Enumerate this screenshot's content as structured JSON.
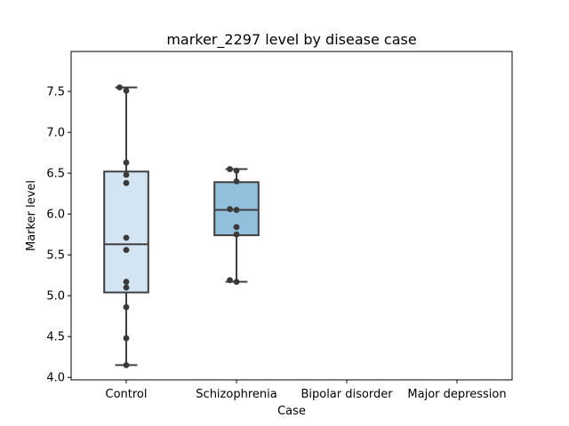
{
  "chart_data": {
    "type": "box",
    "title": "marker_2297 level by disease case",
    "xlabel": "Case",
    "ylabel": "Marker level",
    "ylim": [
      3.97,
      7.99
    ],
    "yticks": [
      4.0,
      4.5,
      5.0,
      5.5,
      6.0,
      6.5,
      7.0,
      7.5
    ],
    "ytick_labels": [
      "4.0",
      "4.5",
      "5.0",
      "5.5",
      "6.0",
      "6.5",
      "7.0",
      "7.5"
    ],
    "categories": [
      "Control",
      "Schizophrenia",
      "Bipolar disorder",
      "Major depression"
    ],
    "boxes": [
      {
        "category": "Control",
        "color": "#d3e4f3",
        "whisker_low": 4.15,
        "q1": 5.04,
        "median": 5.63,
        "q3": 6.52,
        "whisker_high": 7.55
      },
      {
        "category": "Schizophrenia",
        "color": "#92bfdb",
        "whisker_low": 5.17,
        "q1": 5.74,
        "median": 6.05,
        "q3": 6.39,
        "whisker_high": 6.55
      },
      null,
      null
    ],
    "points": [
      {
        "category": "Control",
        "y": 7.55,
        "jitter": -0.06
      },
      {
        "category": "Control",
        "y": 7.51,
        "jitter": 0.0
      },
      {
        "category": "Control",
        "y": 6.63,
        "jitter": 0.0
      },
      {
        "category": "Control",
        "y": 6.48,
        "jitter": 0.0
      },
      {
        "category": "Control",
        "y": 6.38,
        "jitter": 0.0
      },
      {
        "category": "Control",
        "y": 5.71,
        "jitter": 0.0
      },
      {
        "category": "Control",
        "y": 5.56,
        "jitter": 0.0
      },
      {
        "category": "Control",
        "y": 5.17,
        "jitter": 0.0
      },
      {
        "category": "Control",
        "y": 5.1,
        "jitter": 0.0
      },
      {
        "category": "Control",
        "y": 4.86,
        "jitter": 0.0
      },
      {
        "category": "Control",
        "y": 4.48,
        "jitter": 0.0
      },
      {
        "category": "Control",
        "y": 4.15,
        "jitter": 0.0
      },
      {
        "category": "Schizophrenia",
        "y": 6.55,
        "jitter": -0.06
      },
      {
        "category": "Schizophrenia",
        "y": 6.53,
        "jitter": 0.0
      },
      {
        "category": "Schizophrenia",
        "y": 6.4,
        "jitter": 0.0
      },
      {
        "category": "Schizophrenia",
        "y": 6.06,
        "jitter": -0.06
      },
      {
        "category": "Schizophrenia",
        "y": 6.05,
        "jitter": 0.0
      },
      {
        "category": "Schizophrenia",
        "y": 5.84,
        "jitter": 0.0
      },
      {
        "category": "Schizophrenia",
        "y": 5.75,
        "jitter": 0.0
      },
      {
        "category": "Schizophrenia",
        "y": 5.19,
        "jitter": -0.06
      },
      {
        "category": "Schizophrenia",
        "y": 5.17,
        "jitter": 0.0
      }
    ],
    "point_color": "#3a3a3a",
    "box_edge_color": "#3f3f3f",
    "grid": false,
    "legend": "none"
  }
}
